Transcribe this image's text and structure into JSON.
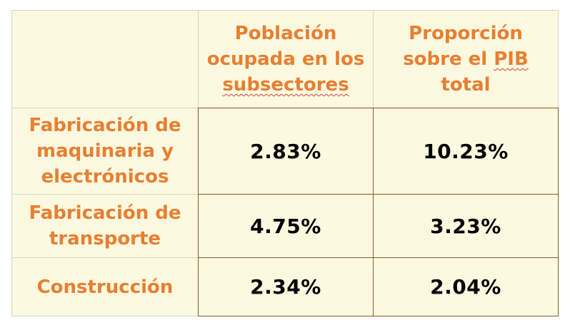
{
  "table": {
    "header": {
      "col1": {
        "line1": "Población",
        "line2": "ocupada en los",
        "line3": "subsectores"
      },
      "col2": {
        "line1": "Proporción",
        "line2a": "sobre el ",
        "line2b": "PIB",
        "line3": "total"
      }
    },
    "rows": [
      {
        "label_lines": [
          "Fabricación de",
          "maquinaria y",
          "electrónicos"
        ],
        "employment": "2.83%",
        "gdp_share": "10.23%"
      },
      {
        "label_lines": [
          "Fabricación de",
          "transporte"
        ],
        "employment": "4.75%",
        "gdp_share": "3.23%"
      },
      {
        "label_lines": [
          "Construcción"
        ],
        "employment": "2.34%",
        "gdp_share": "2.04%"
      }
    ]
  },
  "colors": {
    "header_text": "#e87f32",
    "cell_background": "#fdf9e0",
    "value_text": "#000000"
  }
}
